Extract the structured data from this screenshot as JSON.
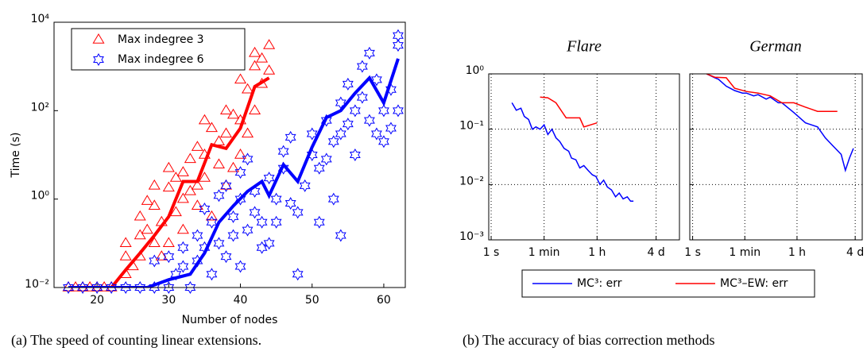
{
  "chart_data": [
    {
      "type": "line",
      "xlabel": "Number of nodes",
      "ylabel": "Time (s)",
      "log_y": true,
      "grid": false,
      "legend": "upper left",
      "caption": "(a) The speed of counting linear extensions.",
      "xlim": [
        14,
        63
      ],
      "xticks": [
        20,
        30,
        40,
        50,
        60
      ],
      "ylim": [
        0.01,
        10000
      ],
      "yticks": [
        {
          "value": 0.01,
          "label": "10⁻²"
        },
        {
          "value": 1,
          "label": "10⁰"
        },
        {
          "value": 100,
          "label": "10²"
        },
        {
          "value": 10000,
          "label": "10⁴"
        }
      ],
      "series": [
        {
          "name": "Max indegree 3",
          "color": "#ff0000",
          "marker": "triangle",
          "x": [
            16,
            18,
            20,
            22,
            24,
            26,
            28,
            30,
            32,
            34,
            36,
            38,
            40,
            42,
            44
          ],
          "values": [
            0.01,
            0.01,
            0.01,
            0.01,
            0.025,
            0.06,
            0.15,
            0.4,
            2.5,
            2.5,
            17,
            14,
            40,
            350,
            550
          ],
          "scatter_x": [
            16,
            17,
            18,
            19,
            20,
            21,
            22,
            24,
            24,
            24,
            25,
            26,
            26,
            26,
            27,
            27,
            28,
            28,
            28,
            29,
            29,
            30,
            30,
            30,
            31,
            31,
            32,
            32,
            32,
            33,
            33,
            34,
            34,
            34,
            35,
            35,
            35,
            36,
            36,
            37,
            37,
            38,
            38,
            38,
            39,
            39,
            40,
            40,
            40,
            41,
            41,
            42,
            42,
            42,
            43,
            43,
            44,
            44
          ],
          "scatter_y": [
            0.01,
            0.01,
            0.01,
            0.01,
            0.01,
            0.01,
            0.01,
            0.05,
            0.1,
            0.02,
            0.03,
            0.4,
            0.15,
            0.05,
            0.9,
            0.2,
            0.7,
            0.1,
            2,
            0.3,
            0.05,
            1.8,
            0.1,
            5,
            3,
            0.5,
            4,
            1,
            0.2,
            1.5,
            8,
            2,
            0.7,
            15,
            60,
            10,
            3,
            40,
            0.4,
            20,
            6,
            2,
            30,
            100,
            80,
            5,
            60,
            10,
            500,
            300,
            30,
            2000,
            100,
            1000,
            1500,
            400,
            3000,
            800
          ]
        },
        {
          "name": "Max indegree 6",
          "color": "#0000ff",
          "marker": "star",
          "x": [
            16,
            20,
            24,
            27,
            30,
            33,
            35,
            37,
            39,
            41,
            43,
            44,
            46,
            48,
            50,
            52,
            54,
            56,
            58,
            60,
            62
          ],
          "values": [
            0.01,
            0.01,
            0.01,
            0.01,
            0.015,
            0.02,
            0.06,
            0.3,
            0.7,
            1.5,
            2.5,
            1.2,
            6,
            2.5,
            15,
            70,
            100,
            250,
            550,
            150,
            1500
          ],
          "scatter_x": [
            16,
            18,
            20,
            22,
            24,
            26,
            28,
            28,
            30,
            30,
            31,
            32,
            32,
            33,
            34,
            34,
            35,
            35,
            36,
            36,
            37,
            37,
            38,
            38,
            39,
            39,
            40,
            40,
            40,
            41,
            41,
            42,
            42,
            43,
            43,
            44,
            44,
            45,
            45,
            46,
            46,
            47,
            47,
            48,
            48,
            49,
            50,
            50,
            51,
            51,
            52,
            52,
            53,
            53,
            54,
            54,
            54,
            55,
            55,
            56,
            56,
            57,
            57,
            58,
            58,
            59,
            59,
            60,
            60,
            61,
            61,
            62,
            62,
            62
          ],
          "scatter_y": [
            0.01,
            0.01,
            0.01,
            0.01,
            0.01,
            0.01,
            0.01,
            0.04,
            0.01,
            0.05,
            0.02,
            0.03,
            0.08,
            0.01,
            0.04,
            0.15,
            0.08,
            0.6,
            0.02,
            0.3,
            1.2,
            0.1,
            0.05,
            2,
            0.4,
            0.15,
            1,
            4,
            0.03,
            0.2,
            8,
            0.5,
            1.5,
            0.3,
            0.08,
            0.1,
            3,
            1,
            0.3,
            5,
            12,
            0.8,
            25,
            0.02,
            0.5,
            2,
            10,
            30,
            0.3,
            5,
            60,
            8,
            1,
            20,
            0.15,
            150,
            30,
            400,
            50,
            10,
            100,
            1000,
            200,
            2000,
            60,
            30,
            500,
            100,
            20,
            300,
            40,
            5000,
            3000,
            100
          ]
        }
      ]
    },
    {
      "type": "line",
      "title": "Flare",
      "log_x": true,
      "log_y": true,
      "grid": true,
      "legend": "below",
      "caption": "(b) The accuracy of bias correction methods",
      "xlim": [
        0.83,
        2100000
      ],
      "xticks": [
        {
          "value": 1,
          "label": "1 s"
        },
        {
          "value": 60,
          "label": "1 min"
        },
        {
          "value": 3600,
          "label": "1 h"
        },
        {
          "value": 345600,
          "label": "4 d"
        }
      ],
      "ylim": [
        0.001,
        1
      ],
      "yticks": [
        {
          "value": 0.001,
          "label": "10⁻³"
        },
        {
          "value": 0.01,
          "label": "10⁻²"
        },
        {
          "value": 0.1,
          "label": "10⁻¹"
        },
        {
          "value": 1,
          "label": "10⁰"
        }
      ],
      "series": [
        {
          "name": "MC³: err",
          "color": "#0000ff",
          "x": [
            5,
            7,
            10,
            13,
            18,
            24,
            32,
            44,
            60,
            80,
            110,
            150,
            200,
            280,
            400,
            500,
            700,
            950,
            1300,
            1800,
            2500,
            3300,
            4500,
            6000,
            8000,
            11000,
            15000,
            20000,
            27000,
            37000,
            48000,
            60000
          ],
          "values": [
            0.3,
            0.22,
            0.24,
            0.17,
            0.15,
            0.1,
            0.11,
            0.1,
            0.12,
            0.08,
            0.1,
            0.07,
            0.06,
            0.045,
            0.04,
            0.03,
            0.028,
            0.02,
            0.022,
            0.018,
            0.015,
            0.014,
            0.01,
            0.012,
            0.009,
            0.008,
            0.006,
            0.007,
            0.0055,
            0.006,
            0.005,
            0.005
          ]
        },
        {
          "name": "MC³–EW: err",
          "color": "#ff0000",
          "x": [
            44,
            80,
            150,
            330,
            950,
            1300,
            3600
          ],
          "values": [
            0.38,
            0.37,
            0.3,
            0.16,
            0.16,
            0.11,
            0.13
          ]
        }
      ]
    },
    {
      "type": "line",
      "title": "German",
      "log_x": true,
      "log_y": true,
      "grid": true,
      "xlim": [
        0.8,
        600000
      ],
      "xticks": [
        {
          "value": 1,
          "label": "1 s"
        },
        {
          "value": 60,
          "label": "1 min"
        },
        {
          "value": 3600,
          "label": "1 h"
        },
        {
          "value": 345600,
          "label": "4 d"
        }
      ],
      "ylim": [
        0.001,
        1
      ],
      "yticks": [
        0.001,
        0.01,
        0.1,
        1
      ],
      "series": [
        {
          "color": "#0000ff",
          "x": [
            3,
            5.7,
            7.6,
            14,
            19,
            27,
            50,
            68,
            120,
            170,
            320,
            440,
            830,
            1100,
            2800,
            7000,
            18000,
            33000,
            60000,
            115000,
            160000,
            220000,
            300000
          ],
          "values": [
            1,
            0.85,
            0.8,
            0.6,
            0.55,
            0.5,
            0.45,
            0.45,
            0.4,
            0.42,
            0.35,
            0.38,
            0.3,
            0.3,
            0.2,
            0.13,
            0.11,
            0.07,
            0.05,
            0.035,
            0.018,
            0.03,
            0.045
          ]
        },
        {
          "color": "#ff0000",
          "x": [
            3,
            5.7,
            14,
            27,
            68,
            170,
            440,
            1100,
            2800,
            7000,
            18000,
            85000
          ],
          "values": [
            1,
            0.87,
            0.85,
            0.55,
            0.48,
            0.45,
            0.4,
            0.3,
            0.3,
            0.25,
            0.21,
            0.21
          ]
        }
      ]
    }
  ]
}
